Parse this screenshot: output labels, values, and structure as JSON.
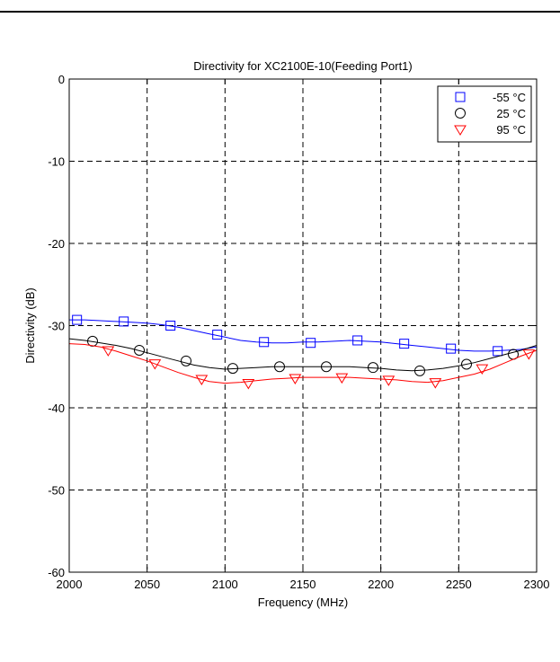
{
  "chart_data": {
    "type": "line",
    "title": "Directivity for XC2100E-10(Feeding Port1)",
    "xlabel": "Frequency (MHz)",
    "ylabel": "Directivity (dB)",
    "xlim": [
      2000,
      2300
    ],
    "ylim": [
      -60,
      0
    ],
    "xticks": [
      2000,
      2050,
      2100,
      2150,
      2200,
      2250,
      2300
    ],
    "yticks": [
      0,
      -10,
      -20,
      -30,
      -40,
      -50,
      -60
    ],
    "grid": true,
    "legend_position": "top-right",
    "series": [
      {
        "name": "-55 °C",
        "color": "#0000ff",
        "marker": "square",
        "x": [
          2000,
          2010,
          2020,
          2030,
          2040,
          2050,
          2060,
          2070,
          2080,
          2090,
          2100,
          2110,
          2120,
          2130,
          2140,
          2150,
          2160,
          2170,
          2180,
          2190,
          2200,
          2210,
          2220,
          2230,
          2240,
          2250,
          2260,
          2270,
          2280,
          2290,
          2300
        ],
        "y": [
          -29.3,
          -29.3,
          -29.4,
          -29.5,
          -29.6,
          -29.7,
          -29.9,
          -30.2,
          -30.6,
          -31.0,
          -31.4,
          -31.8,
          -32.0,
          -32.1,
          -32.1,
          -32.0,
          -32.0,
          -31.9,
          -31.8,
          -31.9,
          -32.0,
          -32.2,
          -32.4,
          -32.6,
          -32.8,
          -33.0,
          -33.1,
          -33.1,
          -33.0,
          -32.9,
          -32.6
        ],
        "marker_x": [
          2005,
          2035,
          2065,
          2095,
          2125,
          2155,
          2185,
          2215,
          2245,
          2275
        ],
        "marker_y": [
          -29.3,
          -29.5,
          -30.0,
          -31.1,
          -32.0,
          -32.1,
          -31.8,
          -32.2,
          -32.8,
          -33.1
        ]
      },
      {
        "name": "25 °C",
        "color": "#000000",
        "marker": "circle",
        "x": [
          2000,
          2010,
          2020,
          2030,
          2040,
          2050,
          2060,
          2070,
          2080,
          2090,
          2100,
          2110,
          2120,
          2130,
          2140,
          2150,
          2160,
          2170,
          2180,
          2190,
          2200,
          2210,
          2220,
          2230,
          2240,
          2250,
          2260,
          2270,
          2280,
          2290,
          2300
        ],
        "y": [
          -31.6,
          -31.8,
          -32.1,
          -32.4,
          -32.8,
          -33.3,
          -33.8,
          -34.3,
          -34.8,
          -35.1,
          -35.3,
          -35.2,
          -35.1,
          -35.0,
          -35.0,
          -35.0,
          -35.0,
          -35.0,
          -35.0,
          -35.1,
          -35.2,
          -35.4,
          -35.5,
          -35.4,
          -35.2,
          -34.9,
          -34.5,
          -34.0,
          -33.5,
          -33.0,
          -32.4
        ],
        "marker_x": [
          2015,
          2045,
          2075,
          2105,
          2135,
          2165,
          2195,
          2225,
          2255,
          2285
        ],
        "marker_y": [
          -31.9,
          -33.0,
          -34.3,
          -35.2,
          -35.0,
          -35.0,
          -35.1,
          -35.5,
          -34.7,
          -33.5
        ]
      },
      {
        "name": "95 °C",
        "color": "#ff0000",
        "marker": "triangle-down",
        "x": [
          2000,
          2010,
          2020,
          2030,
          2040,
          2050,
          2060,
          2070,
          2080,
          2090,
          2100,
          2110,
          2120,
          2130,
          2140,
          2150,
          2160,
          2170,
          2180,
          2190,
          2200,
          2210,
          2220,
          2230,
          2240,
          2250,
          2260,
          2270,
          2280,
          2290,
          2300
        ],
        "y": [
          -32.2,
          -32.3,
          -32.6,
          -33.1,
          -33.7,
          -34.3,
          -35.0,
          -35.7,
          -36.3,
          -36.8,
          -37.0,
          -36.9,
          -36.7,
          -36.5,
          -36.4,
          -36.3,
          -36.3,
          -36.3,
          -36.3,
          -36.4,
          -36.5,
          -36.6,
          -36.8,
          -36.9,
          -36.7,
          -36.3,
          -35.9,
          -35.3,
          -34.5,
          -33.7,
          -33.0
        ],
        "marker_x": [
          2025,
          2055,
          2085,
          2115,
          2145,
          2175,
          2205,
          2235,
          2265,
          2295
        ],
        "marker_y": [
          -33.0,
          -34.6,
          -36.5,
          -37.0,
          -36.4,
          -36.3,
          -36.6,
          -36.9,
          -35.2,
          -33.4
        ]
      }
    ]
  }
}
